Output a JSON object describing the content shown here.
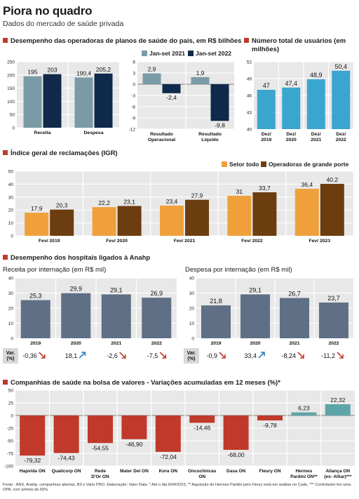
{
  "title": "Piora no quadro",
  "subtitle": "Dados do mercado de saúde privada",
  "colors": {
    "gray_bar": "#7a9aa6",
    "navy_bar": "#0f2a4a",
    "red_bar": "#c0392b",
    "teal_bar": "#3aa6d0",
    "orange_bar": "#f0a03a",
    "brown_bar": "#6b3d0f",
    "slate_bar": "#5f6f86",
    "teal_bar2": "#5ea5a9",
    "accent": "#c0392b",
    "arrow_up": "#2a7fc0",
    "arrow_down": "#c0392b"
  },
  "sections": {
    "desempenho": "Desempenho das operadoras de planos de saúde do país, em R$ bilhões",
    "usuarios": "Número total de usuários (em milhões)",
    "igr": "Índice geral de reclamações (IGR)",
    "hospitais": "Desempenho dos hospitais ligados à Anahp",
    "bolsa": "Companhias de saúde na bolsa de valores - Variações acumuladas em 12 meses (%)*"
  },
  "chart_data": [
    {
      "type": "bar",
      "id": "operadoras_receita_despesa",
      "categories": [
        "Receita",
        "Despesa"
      ],
      "series": [
        {
          "name": "Jan-set 2021",
          "values": [
            195,
            190.4
          ],
          "labels": [
            "195",
            "190,4"
          ]
        },
        {
          "name": "Jan-set 2022",
          "values": [
            203,
            205.2
          ],
          "labels": [
            "203",
            "205,2"
          ]
        }
      ],
      "ylim": [
        0,
        250
      ],
      "yticks": [
        "0",
        "50",
        "100",
        "150",
        "200",
        "250"
      ],
      "grid": true
    },
    {
      "type": "bar",
      "id": "operadoras_resultado",
      "categories": [
        "Resultado Operacional",
        "Resultado Líquido"
      ],
      "category_lines": [
        [
          "Resultado",
          "Operacional"
        ],
        [
          "Resultado",
          "Líquido"
        ]
      ],
      "series": [
        {
          "name": "Jan-set 2021",
          "values": [
            2.9,
            1.9
          ],
          "labels": [
            "2,9",
            "1,9"
          ]
        },
        {
          "name": "Jan-set 2022",
          "values": [
            -2.4,
            -9.8
          ],
          "labels": [
            "-2,4",
            "-9,8"
          ]
        }
      ],
      "ylim": [
        -12,
        6
      ],
      "yticks": [
        "-12",
        "-9",
        "-6",
        "-3",
        "0",
        "3",
        "6"
      ],
      "legend": [
        "Jan-set 2021",
        "Jan-set 2022"
      ],
      "legend_placement": "top"
    },
    {
      "type": "bar",
      "id": "usuarios",
      "categories": [
        "Dez/ 2019",
        "Dez/ 2020",
        "Dez/ 2021",
        "Dez/ 2022"
      ],
      "category_lines": [
        [
          "Dez/",
          "2019"
        ],
        [
          "Dez/",
          "2020"
        ],
        [
          "Dez/",
          "2021"
        ],
        [
          "Dez/",
          "2022"
        ]
      ],
      "values": [
        47,
        47.4,
        48.9,
        50.4
      ],
      "labels": [
        "47",
        "47,4",
        "48,9",
        "50,4"
      ],
      "ylim": [
        40,
        52
      ],
      "yticks": [
        "40",
        "43",
        "46",
        "49",
        "52"
      ]
    },
    {
      "type": "bar",
      "id": "igr",
      "categories": [
        "Fev/ 2019",
        "Fev/ 2020",
        "Fev/ 2021",
        "Fev/ 2022",
        "Fev/ 2023"
      ],
      "series": [
        {
          "name": "Setor todo",
          "values": [
            17.9,
            22.2,
            23.4,
            31,
            36.4
          ],
          "labels": [
            "17,9",
            "22,2",
            "23,4",
            "31",
            "36,4"
          ]
        },
        {
          "name": "Operadoras de grande porte",
          "values": [
            20.3,
            23.1,
            27.9,
            33.7,
            40.2
          ],
          "labels": [
            "20,3",
            "23,1",
            "27,9",
            "33,7",
            "40,2"
          ]
        }
      ],
      "ylim": [
        0,
        50
      ],
      "yticks": [
        "0",
        "10",
        "20",
        "30",
        "40",
        "50"
      ],
      "legend_placement": "top-right"
    },
    {
      "type": "bar",
      "id": "receita_internacao",
      "title": "Receita por internação (em R$ mil)",
      "categories": [
        "2019",
        "2020",
        "2021",
        "2022"
      ],
      "values": [
        25.3,
        29.9,
        29.1,
        26.9
      ],
      "labels": [
        "25,3",
        "29,9",
        "29,1",
        "26,9"
      ],
      "ylim": [
        0,
        40
      ],
      "yticks": [
        "0",
        "10",
        "20",
        "30",
        "40"
      ],
      "var_label": [
        "Var.",
        "(%)"
      ],
      "var": [
        "-0,36",
        "18,1",
        "-2,6",
        "-7,5"
      ],
      "var_dir": [
        "down",
        "up",
        "down",
        "down"
      ]
    },
    {
      "type": "bar",
      "id": "despesa_internacao",
      "title": "Despesa por internação  (em R$ mil)",
      "categories": [
        "2019",
        "2020",
        "2021",
        "2022"
      ],
      "values": [
        21.8,
        29.1,
        26.7,
        23.7
      ],
      "labels": [
        "21,8",
        "29,1",
        "26,7",
        "23,7"
      ],
      "ylim": [
        0,
        40
      ],
      "yticks": [
        "0",
        "10",
        "20",
        "30",
        "40"
      ],
      "var_label": [
        "Var.",
        "(%)"
      ],
      "var": [
        "-0,9",
        "33,4",
        "-8,24",
        "-11,2"
      ],
      "var_dir": [
        "down",
        "up",
        "down",
        "down"
      ]
    },
    {
      "type": "bar",
      "id": "bolsa",
      "categories": [
        "Hapvida ON",
        "Qualicorp ON",
        "Rede D'Or ON",
        "Mater Dei ON",
        "Kora ON",
        "Oncoclínicas ON",
        "Dasa ON",
        "Fleury ON",
        "Hermes Pardini ON**",
        "Aliança ON (ex- Alliar)***"
      ],
      "category_lines": [
        [
          "Hapvida ON"
        ],
        [
          "Qualicorp ON"
        ],
        [
          "Rede",
          "D'Or ON"
        ],
        [
          "Mater Dei ON"
        ],
        [
          "Kora ON"
        ],
        [
          "Oncoclínicas",
          "ON"
        ],
        [
          "Dasa ON"
        ],
        [
          "Fleury ON"
        ],
        [
          "Hermes",
          "Pardini ON**"
        ],
        [
          "Aliança ON",
          "(ex- Alliar)***"
        ]
      ],
      "values": [
        -79.32,
        -74.43,
        -54.55,
        -46.9,
        -72.04,
        -14.46,
        -68.0,
        -9.78,
        6.23,
        22.32
      ],
      "labels": [
        "-79,32",
        "-74,43",
        "-54,55",
        "-46,90",
        "-72,04",
        "-14,46",
        "-68,00",
        "-9,78",
        "6,23",
        "22,32"
      ],
      "ylim": [
        -100,
        50
      ],
      "yticks": [
        "-100",
        "-75",
        "-50",
        "-25",
        "0",
        "25",
        "50"
      ]
    }
  ],
  "footnote": "Fonte : ANS, Anahp, companhias abertas, B3 e Valor PRO. Elaboração: Valor Data. * Até o dia 6/04/2023, ** Aquisição do Hermes Pardini pelo Fleury está em análise no Cade, *** Controlador fez uma OPA, com prêmio de 65%"
}
